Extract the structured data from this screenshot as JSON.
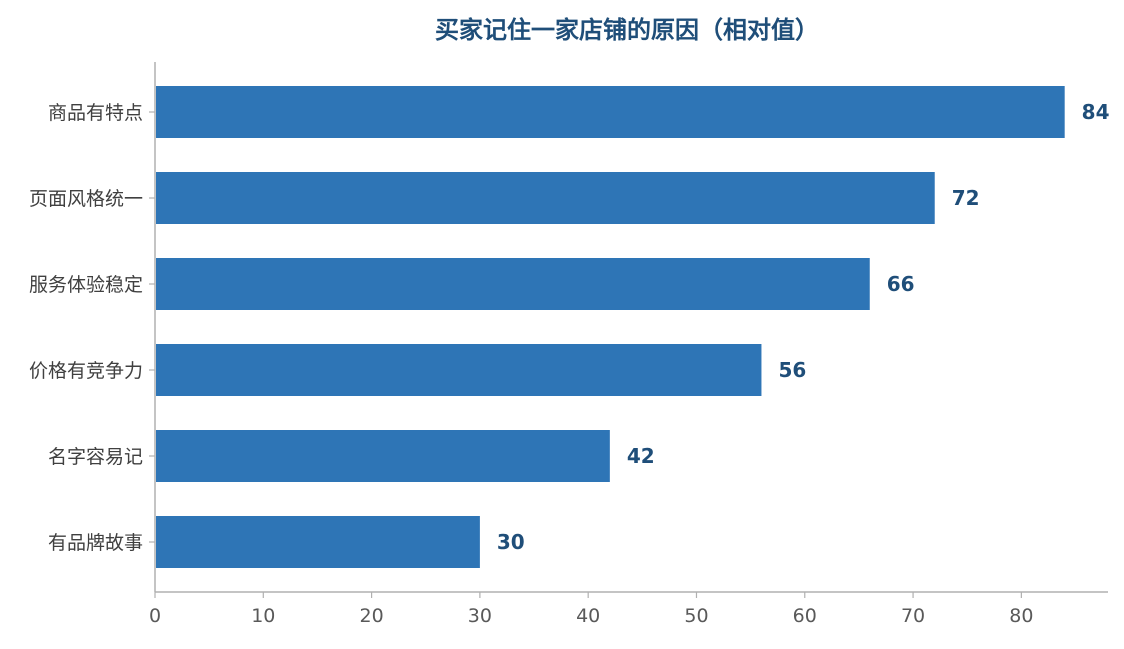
{
  "chart_data": {
    "type": "bar",
    "orientation": "horizontal",
    "title": "买家记住一家店铺的原因（相对值）",
    "xlabel": "",
    "ylabel": "",
    "categories": [
      "商品有特点",
      "页面风格统一",
      "服务体验稳定",
      "价格有竞争力",
      "名字容易记",
      "有品牌故事"
    ],
    "values": [
      84,
      72,
      66,
      56,
      42,
      30
    ],
    "xlim": [
      0,
      88
    ],
    "x_ticks": [
      0,
      10,
      20,
      30,
      40,
      50,
      60,
      70,
      80
    ],
    "grid": false,
    "legend": "none",
    "data_labels": true
  },
  "colors": {
    "bar": "#2e75b6",
    "title": "#1f4e79",
    "value_label": "#1f4e79",
    "axis": "#b0b0b0",
    "tick_text": "#595959",
    "category_text": "#404040"
  }
}
